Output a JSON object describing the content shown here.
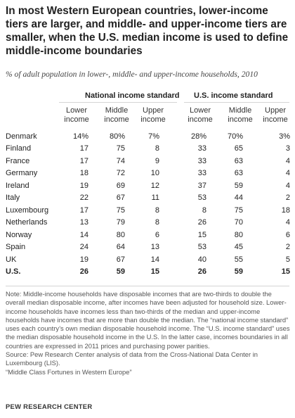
{
  "title": "In most Western European countries, lower-income tiers are larger, and middle- and upper-income tiers are smaller, when the U.S. median income is used to define middle-income boundaries",
  "subtitle": "% of adult population in lower-, middle- and upper-income households, 2010",
  "chart_data": {
    "type": "table",
    "column_groups": [
      "National income standard",
      "U.S. income standard"
    ],
    "columns": [
      "Lower income",
      "Middle income",
      "Upper income",
      "Lower income",
      "Middle income",
      "Upper income"
    ],
    "rows": [
      {
        "country": "Denmark",
        "values": [
          "14%",
          "80%",
          "7%",
          "28%",
          "70%",
          "3%"
        ]
      },
      {
        "country": "Finland",
        "values": [
          "17",
          "75",
          "8",
          "33",
          "65",
          "3"
        ]
      },
      {
        "country": "France",
        "values": [
          "17",
          "74",
          "9",
          "33",
          "63",
          "4"
        ]
      },
      {
        "country": "Germany",
        "values": [
          "18",
          "72",
          "10",
          "33",
          "63",
          "4"
        ]
      },
      {
        "country": "Ireland",
        "values": [
          "19",
          "69",
          "12",
          "37",
          "59",
          "4"
        ]
      },
      {
        "country": "Italy",
        "values": [
          "22",
          "67",
          "11",
          "53",
          "44",
          "2"
        ]
      },
      {
        "country": "Luxembourg",
        "values": [
          "17",
          "75",
          "8",
          "8",
          "75",
          "18"
        ]
      },
      {
        "country": "Netherlands",
        "values": [
          "13",
          "79",
          "8",
          "26",
          "70",
          "4"
        ]
      },
      {
        "country": "Norway",
        "values": [
          "14",
          "80",
          "6",
          "15",
          "80",
          "6"
        ]
      },
      {
        "country": "Spain",
        "values": [
          "24",
          "64",
          "13",
          "53",
          "45",
          "2"
        ]
      },
      {
        "country": "UK",
        "values": [
          "19",
          "67",
          "14",
          "40",
          "55",
          "5"
        ]
      },
      {
        "country": "U.S.",
        "values": [
          "26",
          "59",
          "15",
          "26",
          "59",
          "15"
        ],
        "bold": true
      }
    ]
  },
  "notes": [
    "Note: Middle-income households have disposable incomes that are two-thirds to double the overall median disposable income, after incomes have been adjusted for household size. Lower-income households have incomes less than two-thirds of the median and upper-income households have incomes that are more than double the median. The “national income standard” uses each country’s own median disposable household income. The “U.S. income standard” uses the median disposable household income in the U.S. In the latter case, incomes boundaries in all countries are expressed in 2011 prices and purchasing power parities.",
    "Source: Pew Research Center analysis of data from the Cross-National Data Center in Luxembourg (LIS).",
    "“Middle Class Fortunes in Western Europe”"
  ],
  "brand": "PEW RESEARCH CENTER"
}
